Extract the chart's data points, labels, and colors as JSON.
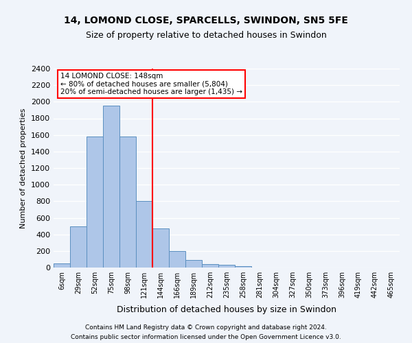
{
  "title1": "14, LOMOND CLOSE, SPARCELLS, SWINDON, SN5 5FE",
  "title2": "Size of property relative to detached houses in Swindon",
  "xlabel": "Distribution of detached houses by size in Swindon",
  "ylabel": "Number of detached properties",
  "bin_labels": [
    "6sqm",
    "29sqm",
    "52sqm",
    "75sqm",
    "98sqm",
    "121sqm",
    "144sqm",
    "166sqm",
    "189sqm",
    "212sqm",
    "235sqm",
    "258sqm",
    "281sqm",
    "304sqm",
    "327sqm",
    "350sqm",
    "373sqm",
    "396sqm",
    "419sqm",
    "442sqm",
    "465sqm"
  ],
  "bar_heights": [
    50,
    500,
    1580,
    1950,
    1580,
    800,
    470,
    195,
    90,
    40,
    30,
    20,
    0,
    0,
    0,
    0,
    0,
    0,
    0,
    0,
    0
  ],
  "bar_color": "#aec6e8",
  "bar_edge_color": "#5a8fc0",
  "annotation_text": "14 LOMOND CLOSE: 148sqm\n← 80% of detached houses are smaller (5,804)\n20% of semi-detached houses are larger (1,435) →",
  "annotation_box_color": "white",
  "annotation_box_edge": "red",
  "vline_color": "red",
  "vline_pos": 5.5,
  "footer1": "Contains HM Land Registry data © Crown copyright and database right 2024.",
  "footer2": "Contains public sector information licensed under the Open Government Licence v3.0.",
  "ylim": [
    0,
    2400
  ],
  "yticks": [
    0,
    200,
    400,
    600,
    800,
    1000,
    1200,
    1400,
    1600,
    1800,
    2000,
    2200,
    2400
  ],
  "background_color": "#f0f4fa",
  "grid_color": "white"
}
